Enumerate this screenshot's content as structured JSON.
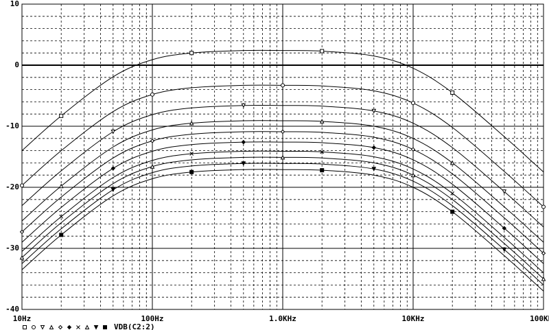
{
  "chart_data": {
    "type": "line",
    "legend_label": "VDB(C2:2)",
    "xscale": "log",
    "grid": true,
    "line_color": "#000000",
    "x": [
      10,
      20,
      50,
      100,
      200,
      500,
      1000,
      2000,
      5000,
      10000,
      20000,
      50000,
      100000
    ],
    "xlim": [
      10,
      100000
    ],
    "xticks": [
      {
        "value": 10,
        "label": "10Hz"
      },
      {
        "value": 100,
        "label": "100Hz"
      },
      {
        "value": 1000,
        "label": "1.0KHz"
      },
      {
        "value": 10000,
        "label": "10KHz"
      },
      {
        "value": 100000,
        "label": "100KHz"
      }
    ],
    "xminorticks": [
      20,
      30,
      40,
      50,
      60,
      70,
      80,
      90,
      200,
      300,
      400,
      500,
      600,
      700,
      800,
      900,
      2000,
      3000,
      4000,
      5000,
      6000,
      7000,
      8000,
      9000,
      20000,
      30000,
      40000,
      50000,
      60000,
      70000,
      80000,
      90000
    ],
    "ylim": [
      -40,
      10
    ],
    "yticks": [
      -40,
      -30,
      -20,
      -10,
      0,
      10
    ],
    "yminorticks": [
      -38,
      -36,
      -34,
      -32,
      -28,
      -26,
      -24,
      -22,
      -18,
      -16,
      -14,
      -12,
      -8,
      -6,
      -4,
      -2,
      2,
      4,
      6,
      8
    ],
    "series": [
      {
        "marker": "square",
        "values": [
          -14,
          -8.3,
          -1.9,
          0.9,
          2,
          2.4,
          2.4,
          2.3,
          1.5,
          -0.5,
          -4.5,
          -11.7,
          -17.5
        ]
      },
      {
        "marker": "circle",
        "values": [
          -19.7,
          -14,
          -7.6,
          -4.8,
          -3.7,
          -3.3,
          -3.3,
          -3.4,
          -4.2,
          -6.2,
          -10.2,
          -17.4,
          -23.2
        ]
      },
      {
        "marker": "triangle-down",
        "values": [
          -23,
          -17.3,
          -10.9,
          -8.1,
          -7,
          -6.6,
          -6.6,
          -6.7,
          -7.5,
          -9.5,
          -13.5,
          -20.7,
          -26.5
        ]
      },
      {
        "marker": "triangle",
        "values": [
          -25.5,
          -19.8,
          -13.4,
          -10.6,
          -9.5,
          -9.1,
          -9.1,
          -9.2,
          -10,
          -12,
          -16,
          -23.2,
          -29
        ]
      },
      {
        "marker": "diamond",
        "values": [
          -27.3,
          -21.6,
          -15.2,
          -12.4,
          -11.3,
          -10.9,
          -10.9,
          -11,
          -11.8,
          -13.8,
          -17.8,
          -25,
          -30.8
        ]
      },
      {
        "marker": "diamond-filled",
        "values": [
          -29,
          -23.3,
          -16.9,
          -14.1,
          -13,
          -12.6,
          -12.6,
          -12.7,
          -13.5,
          -15.5,
          -19.5,
          -26.7,
          -32.5
        ]
      },
      {
        "marker": "x",
        "values": [
          -30.5,
          -24.8,
          -18.4,
          -15.6,
          -14.5,
          -14.1,
          -14.1,
          -14.2,
          -15,
          -17,
          -21,
          -28.2,
          -34
        ]
      },
      {
        "marker": "triangle",
        "values": [
          -31.5,
          -25.8,
          -19.4,
          -16.6,
          -15.5,
          -15.1,
          -15.1,
          -15.2,
          -16,
          -18,
          -22,
          -29.2,
          -35
        ]
      },
      {
        "marker": "triangle-down-filled",
        "values": [
          -32.5,
          -26.8,
          -20.4,
          -17.6,
          -16.5,
          -16.1,
          -16.1,
          -16.2,
          -17,
          -19,
          -23,
          -30.2,
          -36
        ]
      },
      {
        "marker": "square-filled",
        "values": [
          -33.5,
          -27.8,
          -21.4,
          -18.6,
          -17.5,
          -17.1,
          -17.1,
          -17.2,
          -18,
          -20,
          -24,
          -31.2,
          -37
        ]
      }
    ]
  }
}
